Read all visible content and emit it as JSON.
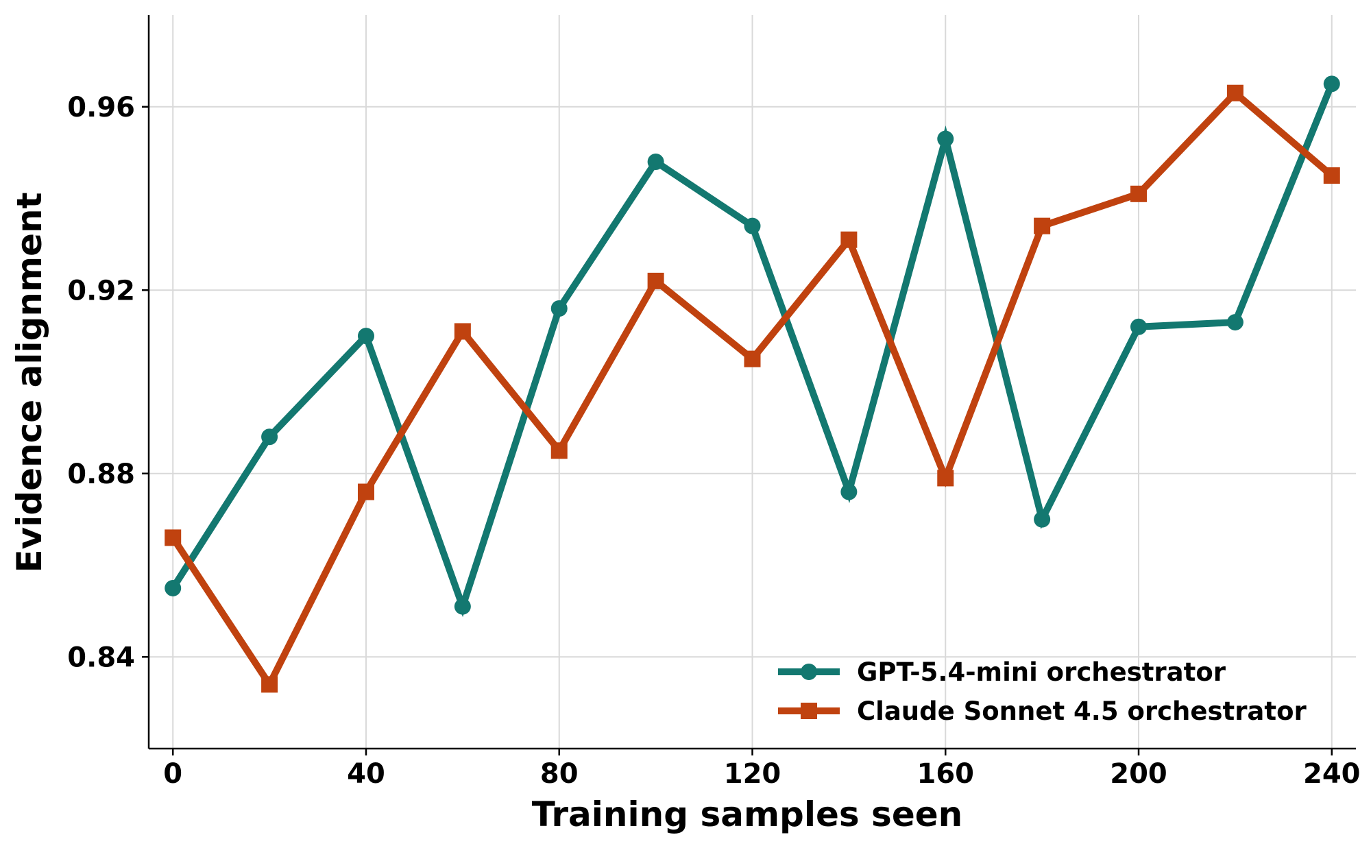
{
  "chart_data": {
    "type": "line",
    "title": "",
    "xlabel": "Training samples seen",
    "ylabel": "Evidence alignment",
    "xlim": [
      -5,
      245
    ],
    "ylim": [
      0.82,
      0.98
    ],
    "x_ticks": [
      0,
      40,
      80,
      120,
      160,
      200,
      240
    ],
    "y_ticks": [
      0.84,
      0.88,
      0.92,
      0.96
    ],
    "x_tick_labels": [
      "0",
      "40",
      "80",
      "120",
      "160",
      "200",
      "240"
    ],
    "y_tick_labels": [
      "0.84",
      "0.88",
      "0.92",
      "0.96"
    ],
    "grid": true,
    "legend_position": "lower-right",
    "x": [
      0,
      20,
      40,
      60,
      80,
      100,
      120,
      140,
      160,
      180,
      200,
      220,
      240
    ],
    "series": [
      {
        "name": "GPT-5.4-mini orchestrator",
        "color": "#137870",
        "marker": "circle",
        "values": [
          0.855,
          0.888,
          0.91,
          0.851,
          0.916,
          0.948,
          0.934,
          0.876,
          0.953,
          0.87,
          0.912,
          0.913,
          0.965
        ]
      },
      {
        "name": "Claude Sonnet 4.5 orchestrator",
        "color": "#C0420F",
        "marker": "square",
        "values": [
          0.866,
          0.834,
          0.876,
          0.911,
          0.885,
          0.922,
          0.905,
          0.931,
          0.879,
          0.934,
          0.941,
          0.963,
          0.945
        ]
      }
    ]
  }
}
